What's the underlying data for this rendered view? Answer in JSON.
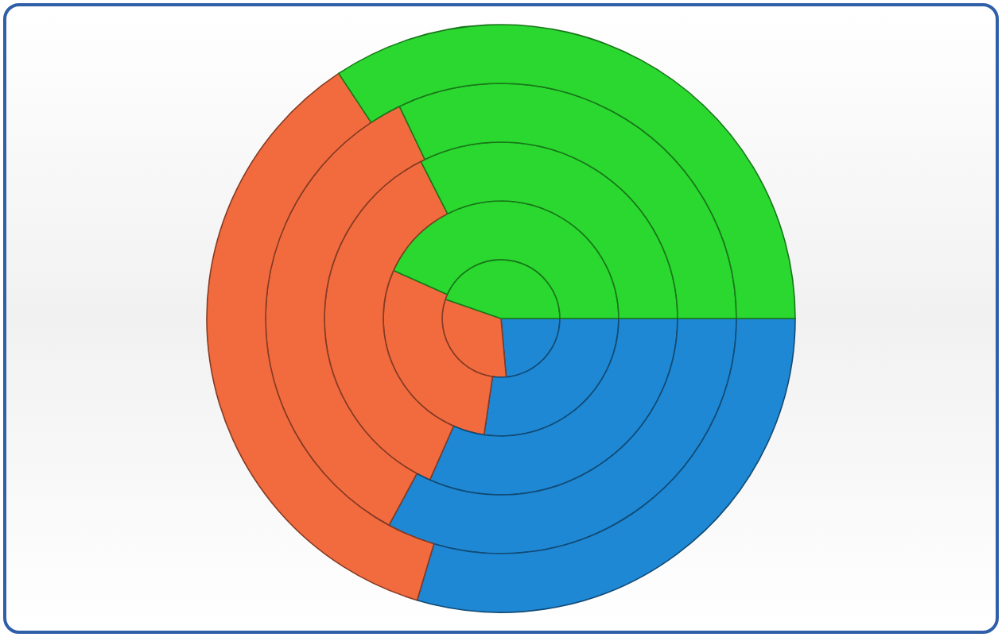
{
  "chart_data": {
    "type": "donut",
    "categories": [
      null,
      null,
      null
    ],
    "colors": [
      "#1e88d4",
      "#f26b3f",
      "#2bd82f"
    ],
    "series": [
      {
        "values": [
          23.6,
          31.7,
          44.7
        ]
      },
      {
        "values": [
          27.3,
          29.4,
          43.3
        ]
      },
      {
        "values": [
          31.6,
          35.9,
          32.5
        ]
      },
      {
        "values": [
          32.9,
          35.0,
          32.1
        ]
      },
      {
        "values": [
          29.6,
          36.1,
          34.3
        ]
      }
    ]
  }
}
